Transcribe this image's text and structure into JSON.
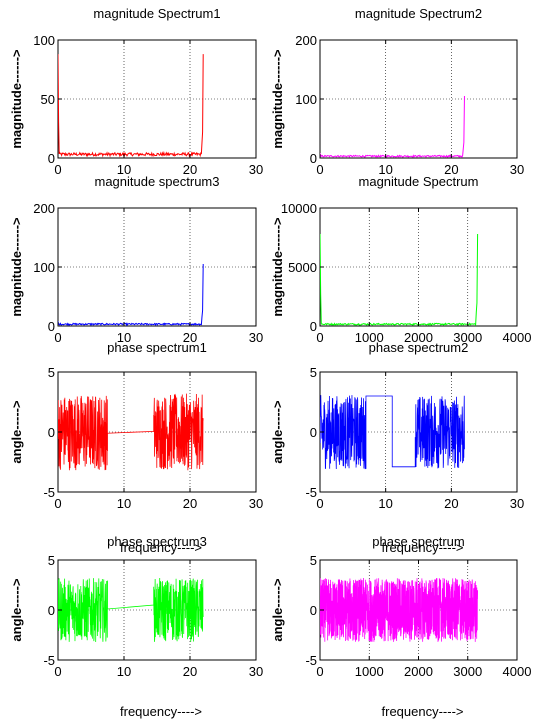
{
  "chart_data": [
    {
      "type": "line",
      "title": "magnitude Spectrum1",
      "ylabel": "magnitude------>",
      "xlabel": "",
      "xlim": [
        0,
        30
      ],
      "ylim": [
        0,
        100
      ],
      "xticks": [
        "0",
        "10",
        "20",
        "30"
      ],
      "yticks": [
        "0",
        "50",
        "100"
      ],
      "grid": true,
      "series": [
        {
          "color": "#ff0000",
          "kind": "magnitude",
          "length": 22,
          "edge_peak_start": 88,
          "edge_peak_end": 88,
          "baseline": 3
        }
      ]
    },
    {
      "type": "line",
      "title": "magnitude Spectrum2",
      "ylabel": "magnitude------>",
      "xlabel": "",
      "xlim": [
        0,
        30
      ],
      "ylim": [
        0,
        200
      ],
      "xticks": [
        "0",
        "10",
        "20",
        "30"
      ],
      "yticks": [
        "0",
        "100",
        "200"
      ],
      "grid": true,
      "series": [
        {
          "color": "#ff00ff",
          "kind": "magnitude",
          "length": 22,
          "edge_peak_start": 8,
          "edge_peak_end": 105,
          "baseline": 3
        }
      ]
    },
    {
      "type": "line",
      "title": "magnitude spectrum3",
      "ylabel": "magnitude------>",
      "xlabel": "",
      "xlim": [
        0,
        30
      ],
      "ylim": [
        0,
        200
      ],
      "xticks": [
        "0",
        "10",
        "20",
        "30"
      ],
      "yticks": [
        "0",
        "100",
        "200"
      ],
      "grid": true,
      "series": [
        {
          "color": "#0000ff",
          "kind": "magnitude",
          "length": 22,
          "edge_peak_start": 8,
          "edge_peak_end": 105,
          "baseline": 3
        }
      ]
    },
    {
      "type": "line",
      "title": "magnitude Spectrum",
      "ylabel": "magnitude------>",
      "xlabel": "",
      "xlim": [
        0,
        4000
      ],
      "ylim": [
        0,
        10000
      ],
      "xticks": [
        "0",
        "1000",
        "2000",
        "3000",
        "4000"
      ],
      "yticks": [
        "0",
        "5000",
        "10000"
      ],
      "grid": true,
      "series": [
        {
          "color": "#00ff00",
          "kind": "magnitude",
          "length": 3200,
          "edge_peak_start": 7800,
          "edge_peak_end": 7800,
          "baseline": 150
        }
      ]
    },
    {
      "type": "line",
      "title": "phase spectrum1",
      "ylabel": "angle----->",
      "xlabel": "frequency---->",
      "xlim": [
        0,
        30
      ],
      "ylim": [
        -5,
        5
      ],
      "xticks": [
        "0",
        "10",
        "20",
        "30"
      ],
      "yticks": [
        "-5",
        "0",
        "5"
      ],
      "grid": true,
      "series": [
        {
          "color": "#ff0000",
          "kind": "phase",
          "length": 22,
          "band_amp": 3.2,
          "noisy_segments": [
            [
              0,
              7.5
            ],
            [
              14.5,
              22
            ]
          ],
          "flat_segments": [
            [
              7.5,
              14.5,
              -0.1,
              0.05
            ]
          ]
        }
      ]
    },
    {
      "type": "line",
      "title": "phase spectrum2",
      "ylabel": "angle----->",
      "xlabel": "frequency---->",
      "xlim": [
        0,
        30
      ],
      "ylim": [
        -5,
        5
      ],
      "xticks": [
        "0",
        "10",
        "20",
        "30"
      ],
      "yticks": [
        "-5",
        "0",
        "5"
      ],
      "grid": true,
      "series": [
        {
          "color": "#0000ff",
          "kind": "phase",
          "length": 22,
          "band_amp": 3.1,
          "noisy_segments": [
            [
              0,
              7
            ],
            [
              14.5,
              22
            ]
          ],
          "flat_segments": [
            [
              7,
              11,
              3.0,
              3.0
            ],
            [
              11,
              14.5,
              -2.9,
              -2.9
            ]
          ]
        }
      ]
    },
    {
      "type": "line",
      "title": "phase spectrum3",
      "ylabel": "angle----->",
      "xlabel": "frequency---->",
      "xlim": [
        0,
        30
      ],
      "ylim": [
        -5,
        5
      ],
      "xticks": [
        "0",
        "10",
        "20",
        "30"
      ],
      "yticks": [
        "-5",
        "0",
        "5"
      ],
      "grid": true,
      "series": [
        {
          "color": "#00ff00",
          "kind": "phase",
          "length": 22,
          "band_amp": 3.2,
          "noisy_segments": [
            [
              0,
              7.5
            ],
            [
              14.5,
              22
            ]
          ],
          "flat_segments": [
            [
              7.5,
              14.5,
              0.1,
              0.5
            ]
          ]
        }
      ]
    },
    {
      "type": "line",
      "title": "phase spectrum",
      "ylabel": "angle----->",
      "xlabel": "frequency---->",
      "xlim": [
        0,
        4000
      ],
      "ylim": [
        -5,
        5
      ],
      "xticks": [
        "0",
        "1000",
        "2000",
        "3000",
        "4000"
      ],
      "yticks": [
        "-5",
        "0",
        "5"
      ],
      "grid": true,
      "series": [
        {
          "color": "#ff00ff",
          "kind": "phase",
          "length": 3200,
          "band_amp": 3.2,
          "noisy_segments": [
            [
              0,
              3200
            ]
          ],
          "flat_segments": []
        }
      ]
    }
  ]
}
